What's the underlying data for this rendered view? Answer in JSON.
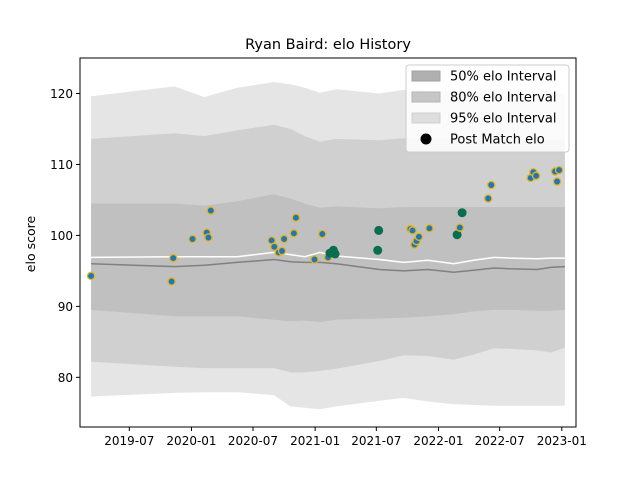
{
  "chart_data": {
    "type": "area",
    "title": "Ryan Baird: elo History",
    "xlabel": "",
    "ylabel": "elo score",
    "xlim": [
      "2019-02-05",
      "2023-02-12"
    ],
    "ylim": [
      73,
      125
    ],
    "grid": false,
    "legend_position": "top-right",
    "x_ticks": [
      "2019-07",
      "2020-01",
      "2020-07",
      "2021-01",
      "2021-07",
      "2022-01",
      "2022-07",
      "2023-01"
    ],
    "y_ticks": [
      80,
      90,
      100,
      110,
      120
    ],
    "legend": [
      "50% elo Interval",
      "80% elo Interval",
      "95% elo Interval",
      "Post Match elo"
    ],
    "band_x": [
      "2019-03-10",
      "2019-11-12",
      "2020-02-08",
      "2020-05-15",
      "2020-09-01",
      "2020-10-20",
      "2020-12-01",
      "2021-01-15",
      "2021-03-05",
      "2021-07-10",
      "2021-09-20",
      "2021-12-01",
      "2022-02-15",
      "2022-04-15",
      "2022-06-15",
      "2022-08-01",
      "2022-10-20",
      "2022-12-01",
      "2023-01-10"
    ],
    "band_series": [
      {
        "name": "95% elo Interval",
        "color": "#e5e5e5",
        "upper": [
          119.6,
          121.0,
          119.5,
          120.8,
          121.6,
          121.3,
          120.8,
          120.1,
          120.6,
          120.0,
          120.5,
          120.4,
          120.3,
          120.2,
          120.1,
          120.1,
          120.1,
          120.0,
          120.0
        ],
        "lower": [
          77.3,
          77.8,
          77.9,
          77.9,
          77.5,
          75.9,
          75.7,
          75.5,
          75.9,
          76.7,
          77.1,
          76.6,
          76.2,
          76.1,
          76.0,
          76.0,
          76.0,
          76.0,
          76.0
        ]
      },
      {
        "name": "80% elo Interval",
        "color": "#d0d0d0",
        "upper": [
          113.6,
          114.4,
          114.0,
          114.8,
          115.6,
          115.0,
          114.0,
          113.2,
          113.6,
          113.4,
          113.7,
          113.6,
          113.6,
          113.5,
          113.5,
          113.5,
          113.5,
          113.5,
          113.5
        ],
        "lower": [
          82.2,
          81.5,
          81.3,
          81.3,
          81.3,
          80.7,
          80.7,
          80.9,
          81.2,
          82.3,
          83.1,
          83.0,
          82.5,
          83.2,
          84.1,
          84.0,
          83.8,
          83.5,
          84.2
        ]
      },
      {
        "name": "50% elo Interval",
        "color": "#c0c0c0",
        "upper": [
          104.5,
          104.5,
          104.2,
          104.8,
          105.8,
          105.2,
          104.5,
          103.9,
          104.1,
          103.8,
          104.0,
          104.0,
          104.0,
          104.0,
          104.0,
          104.0,
          104.0,
          104.0,
          104.0
        ],
        "lower": [
          89.5,
          88.6,
          88.6,
          88.6,
          88.1,
          87.9,
          88.0,
          87.8,
          88.1,
          88.3,
          88.4,
          88.6,
          88.9,
          89.3,
          89.5,
          89.5,
          89.4,
          89.4,
          89.5
        ]
      }
    ],
    "lines": [
      {
        "role": "median",
        "color": "#808080",
        "y": [
          96.0,
          95.6,
          95.8,
          96.2,
          96.6,
          96.3,
          96.2,
          96.2,
          96.0,
          95.2,
          95.0,
          95.2,
          94.8,
          95.1,
          95.4,
          95.3,
          95.2,
          95.5,
          95.6
        ]
      },
      {
        "role": "mean",
        "color": "#ffffff",
        "y": [
          96.9,
          97.0,
          97.0,
          97.0,
          97.6,
          97.3,
          97.0,
          97.6,
          97.1,
          96.6,
          96.2,
          96.5,
          96.0,
          96.5,
          96.9,
          96.8,
          96.7,
          96.8,
          96.8
        ]
      }
    ],
    "points": [
      {
        "x": "2019-03-10",
        "y": 94.3,
        "type": "outlined"
      },
      {
        "x": "2019-11-03",
        "y": 93.5,
        "type": "outlined"
      },
      {
        "x": "2019-11-08",
        "y": 96.8,
        "type": "outlined"
      },
      {
        "x": "2020-01-04",
        "y": 99.5,
        "type": "outlined"
      },
      {
        "x": "2020-02-15",
        "y": 100.4,
        "type": "outlined"
      },
      {
        "x": "2020-02-20",
        "y": 99.7,
        "type": "outlined"
      },
      {
        "x": "2020-02-27",
        "y": 103.5,
        "type": "outlined"
      },
      {
        "x": "2020-08-25",
        "y": 99.3,
        "type": "outlined"
      },
      {
        "x": "2020-09-02",
        "y": 98.4,
        "type": "outlined"
      },
      {
        "x": "2020-09-15",
        "y": 97.6,
        "type": "outlined"
      },
      {
        "x": "2020-09-25",
        "y": 97.8,
        "type": "outlined"
      },
      {
        "x": "2020-10-01",
        "y": 99.5,
        "type": "outlined"
      },
      {
        "x": "2020-10-30",
        "y": 100.3,
        "type": "outlined"
      },
      {
        "x": "2020-11-05",
        "y": 102.5,
        "type": "outlined"
      },
      {
        "x": "2020-12-30",
        "y": 96.6,
        "type": "outlined"
      },
      {
        "x": "2021-01-22",
        "y": 100.2,
        "type": "outlined"
      },
      {
        "x": "2021-02-08",
        "y": 96.9,
        "type": "outlined"
      },
      {
        "x": "2021-02-14",
        "y": 97.5,
        "type": "solid"
      },
      {
        "x": "2021-02-24",
        "y": 97.9,
        "type": "solid"
      },
      {
        "x": "2021-03-01",
        "y": 97.4,
        "type": "solid"
      },
      {
        "x": "2021-07-05",
        "y": 97.9,
        "type": "solid"
      },
      {
        "x": "2021-07-08",
        "y": 100.7,
        "type": "solid"
      },
      {
        "x": "2021-10-10",
        "y": 100.9,
        "type": "outlined"
      },
      {
        "x": "2021-10-16",
        "y": 100.7,
        "type": "outlined"
      },
      {
        "x": "2021-10-22",
        "y": 98.7,
        "type": "outlined"
      },
      {
        "x": "2021-10-28",
        "y": 99.2,
        "type": "outlined"
      },
      {
        "x": "2021-11-04",
        "y": 99.8,
        "type": "outlined"
      },
      {
        "x": "2021-12-05",
        "y": 101.0,
        "type": "outlined"
      },
      {
        "x": "2022-02-25",
        "y": 100.1,
        "type": "solid"
      },
      {
        "x": "2022-03-05",
        "y": 101.1,
        "type": "outlined"
      },
      {
        "x": "2022-03-12",
        "y": 103.2,
        "type": "solid"
      },
      {
        "x": "2022-05-28",
        "y": 105.2,
        "type": "outlined"
      },
      {
        "x": "2022-06-06",
        "y": 107.1,
        "type": "outlined"
      },
      {
        "x": "2022-10-01",
        "y": 108.1,
        "type": "outlined"
      },
      {
        "x": "2022-10-09",
        "y": 108.9,
        "type": "outlined"
      },
      {
        "x": "2022-10-17",
        "y": 108.4,
        "type": "outlined"
      },
      {
        "x": "2022-12-12",
        "y": 109.0,
        "type": "outlined"
      },
      {
        "x": "2022-12-18",
        "y": 107.6,
        "type": "outlined"
      },
      {
        "x": "2022-12-24",
        "y": 109.2,
        "type": "outlined"
      }
    ],
    "colors": {
      "outlined_fill": "#1f77b4",
      "outlined_edge": "#e6b422",
      "solid_fill": "#0a6e4e",
      "legend_marker": "#000000"
    }
  }
}
